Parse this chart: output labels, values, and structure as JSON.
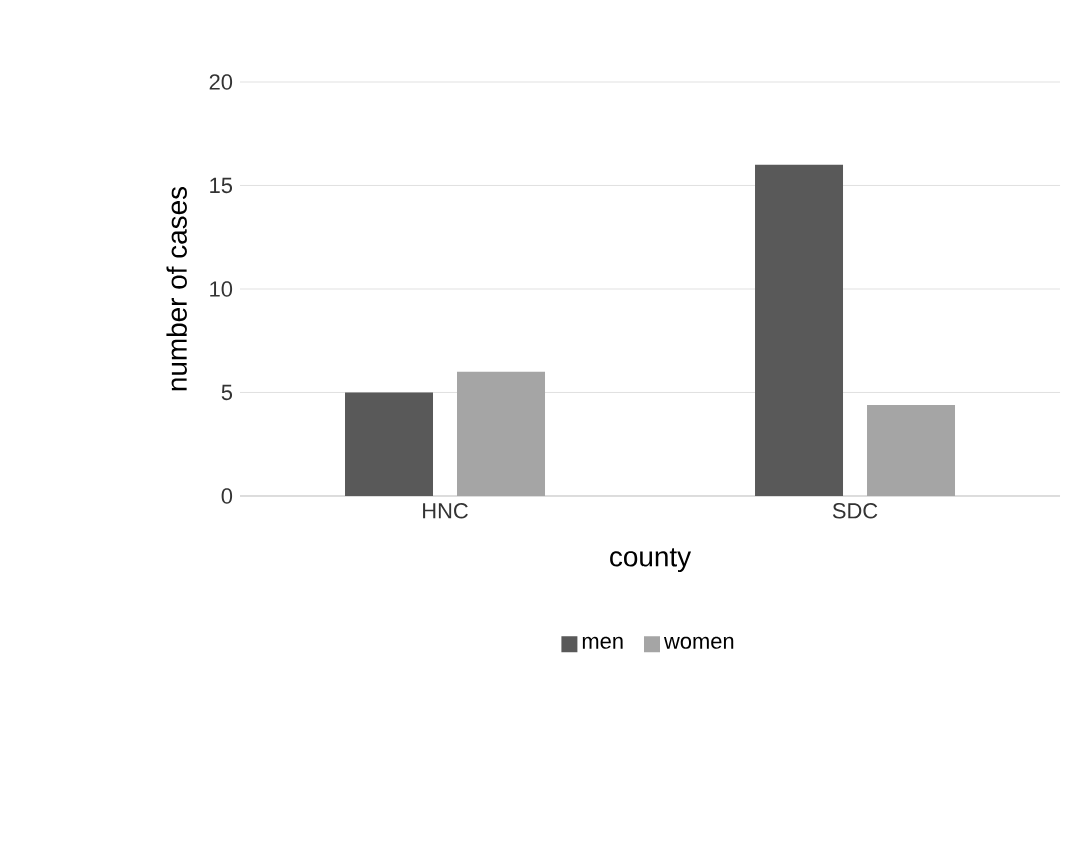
{
  "chart_data": {
    "type": "bar",
    "xlabel": "county",
    "ylabel": "number of cases",
    "categories": [
      "HNC",
      "SDC"
    ],
    "series": [
      {
        "name": "men",
        "color": "#595959",
        "values": [
          5,
          16
        ]
      },
      {
        "name": "women",
        "color": "#a5a5a5",
        "values": [
          6,
          4.4
        ]
      }
    ],
    "ylim": [
      0,
      20
    ],
    "yticks": [
      0,
      5,
      10,
      15,
      20
    ],
    "grid": "y",
    "legend": "bottom"
  }
}
